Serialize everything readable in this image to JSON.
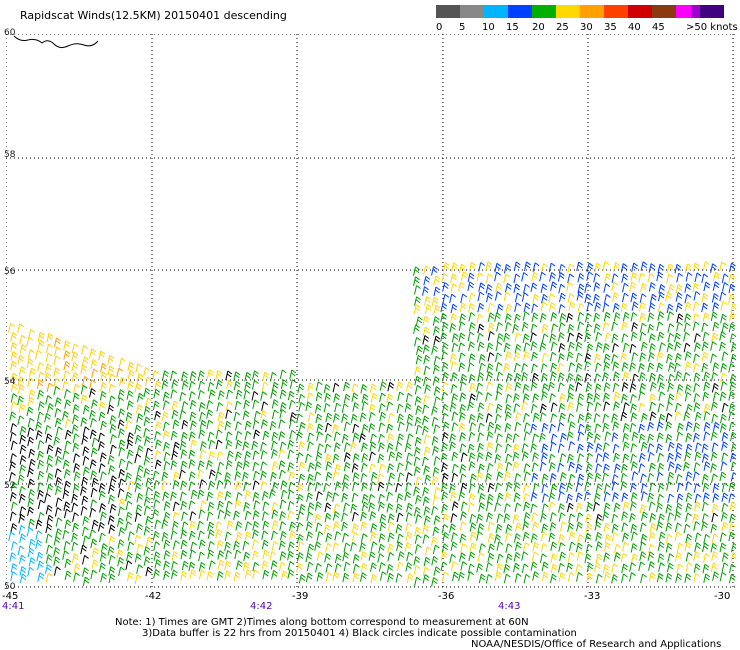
{
  "title": "Rapidscat Winds(12.5KM) 20150401 descending",
  "legend": {
    "labels": [
      "0",
      "5",
      "10",
      "15",
      "20",
      "25",
      "30",
      "35",
      "40",
      "45",
      ">50 knots"
    ],
    "colors": [
      "#555555",
      "#888888",
      "#00b4ff",
      "#0040ff",
      "#00b000",
      "#ffd800",
      "#ffa000",
      "#ff4000",
      "#d00000",
      "#8b3a10",
      "#ff00ff",
      "#a000d0",
      "#400080"
    ]
  },
  "map": {
    "lat_labels": [
      "60",
      "58",
      "56",
      "54",
      "52",
      "50"
    ],
    "lon_labels": [
      "-45",
      "-42",
      "-39",
      "-36",
      "-33",
      "-30"
    ],
    "time_labels": [
      "4:41",
      "4:42",
      "4:43"
    ]
  },
  "notes": {
    "line1": "Note: 1) Times are GMT 2)Times along bottom correspond to measurement at 60N",
    "line2": "3)Data buffer is 22 hrs from 20150401 4) Black circles indicate possible contamination",
    "line3": "NOAA/NESDIS/Office of Research and Applications"
  }
}
